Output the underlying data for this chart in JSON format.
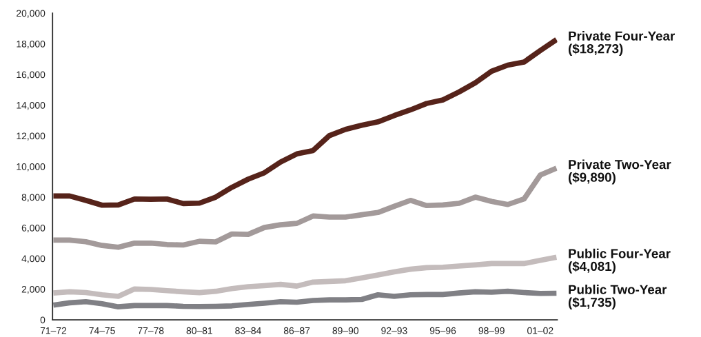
{
  "chart_data": {
    "type": "line",
    "categories": [
      "71–72",
      null,
      null,
      "74–75",
      null,
      null,
      "77–78",
      null,
      null,
      "80–81",
      null,
      null,
      "83–84",
      null,
      null,
      "86–87",
      null,
      null,
      "89–90",
      null,
      null,
      "92–93",
      null,
      null,
      "95–96",
      null,
      null,
      "98–99",
      null,
      null,
      "01–02",
      null
    ],
    "series": [
      {
        "name": "Private Four-Year",
        "color": "#56231a",
        "values": [
          8075,
          8075,
          7790,
          7475,
          7490,
          7880,
          7865,
          7880,
          7580,
          7610,
          8000,
          8640,
          9170,
          9590,
          10290,
          10820,
          11040,
          12010,
          12420,
          12690,
          12910,
          13320,
          13690,
          14110,
          14340,
          14860,
          15460,
          16210,
          16610,
          16810,
          17560,
          18273
        ],
        "value_labels": [
          null,
          null,
          null,
          null,
          null,
          null,
          null,
          null,
          null,
          null,
          null,
          null,
          null,
          null,
          null,
          null,
          null,
          null,
          null,
          null,
          null,
          null,
          null,
          null,
          null,
          null,
          null,
          null,
          null,
          null,
          null,
          "($18,273)"
        ]
      },
      {
        "name": "Private Two-Year",
        "color": "#a39a9a",
        "values": [
          5200,
          5200,
          5090,
          4850,
          4730,
          5000,
          5000,
          4910,
          4880,
          5120,
          5080,
          5600,
          5570,
          6020,
          6200,
          6290,
          6770,
          6700,
          6700,
          6850,
          7000,
          7400,
          7790,
          7450,
          7490,
          7600,
          8000,
          7720,
          7520,
          7880,
          9440,
          9890
        ],
        "value_labels": [
          null,
          null,
          null,
          null,
          null,
          null,
          null,
          null,
          null,
          null,
          null,
          null,
          null,
          null,
          null,
          null,
          null,
          null,
          null,
          null,
          null,
          null,
          null,
          null,
          null,
          null,
          null,
          null,
          null,
          null,
          null,
          "($9,890)"
        ]
      },
      {
        "name": "Public Four-Year",
        "color": "#c4bcbc",
        "values": [
          1750,
          1830,
          1780,
          1630,
          1530,
          2010,
          1980,
          1900,
          1830,
          1770,
          1860,
          2040,
          2160,
          2230,
          2310,
          2200,
          2460,
          2500,
          2550,
          2730,
          2920,
          3130,
          3300,
          3400,
          3430,
          3510,
          3580,
          3670,
          3670,
          3670,
          3880,
          4081
        ],
        "value_labels": [
          null,
          null,
          null,
          null,
          null,
          null,
          null,
          null,
          null,
          null,
          null,
          null,
          null,
          null,
          null,
          null,
          null,
          null,
          null,
          null,
          null,
          null,
          null,
          null,
          null,
          null,
          null,
          null,
          null,
          null,
          null,
          "($4,081)"
        ]
      },
      {
        "name": "Public Two-Year",
        "color": "#808085",
        "values": [
          960,
          1110,
          1180,
          1050,
          850,
          930,
          930,
          930,
          880,
          870,
          880,
          910,
          1000,
          1080,
          1180,
          1150,
          1260,
          1300,
          1300,
          1330,
          1630,
          1530,
          1630,
          1650,
          1650,
          1750,
          1830,
          1800,
          1860,
          1780,
          1720,
          1735
        ],
        "value_labels": [
          null,
          null,
          null,
          null,
          null,
          null,
          null,
          null,
          null,
          null,
          null,
          null,
          null,
          null,
          null,
          null,
          null,
          null,
          null,
          null,
          null,
          null,
          null,
          null,
          null,
          null,
          null,
          null,
          null,
          null,
          null,
          "($1,735)"
        ]
      }
    ],
    "ylim": [
      0,
      20000
    ],
    "yticks": [
      {
        "value": 0,
        "label": "0"
      },
      {
        "value": 2000,
        "label": "2,000"
      },
      {
        "value": 4000,
        "label": "4,000"
      },
      {
        "value": 6000,
        "label": "6,000"
      },
      {
        "value": 8000,
        "label": "8,000"
      },
      {
        "value": 10000,
        "label": "10,000"
      },
      {
        "value": 12000,
        "label": "12,000"
      },
      {
        "value": 14000,
        "label": "14,000"
      },
      {
        "value": 16000,
        "label": "16,000"
      },
      {
        "value": 18000,
        "label": "18,000"
      },
      {
        "value": 20000,
        "label": "20,000"
      }
    ],
    "grid": false,
    "legend": false,
    "marker": "none",
    "line_style": "solid"
  }
}
